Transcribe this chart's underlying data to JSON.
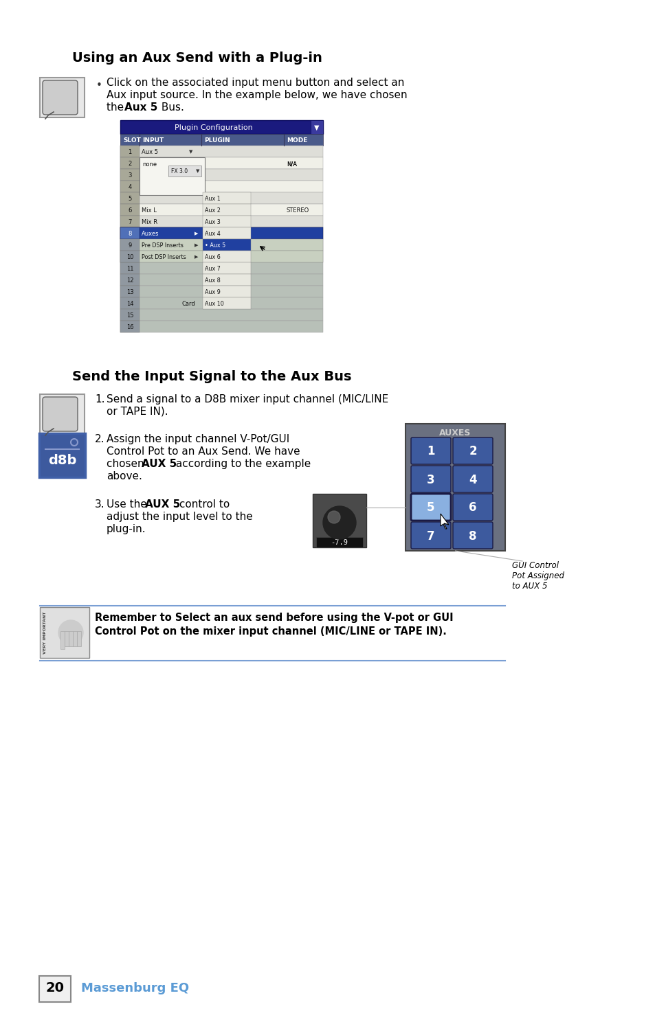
{
  "bg_color": "#ffffff",
  "section1_title": "Using an Aux Send with a Plug-in",
  "section2_title": "Send the Input Signal to the Aux Bus",
  "text_color": "#000000",
  "teal_color": "#5b9bd5",
  "blue_dark": "#1a1a6e",
  "blue_btn": "#3d5a9e",
  "blue_btn_highlight": "#7a9fd4",
  "aux_panel_bg": "#6a7080",
  "warning_line_color": "#7a9fd4",
  "page_number": "20",
  "page_label": "Massenburg EQ"
}
